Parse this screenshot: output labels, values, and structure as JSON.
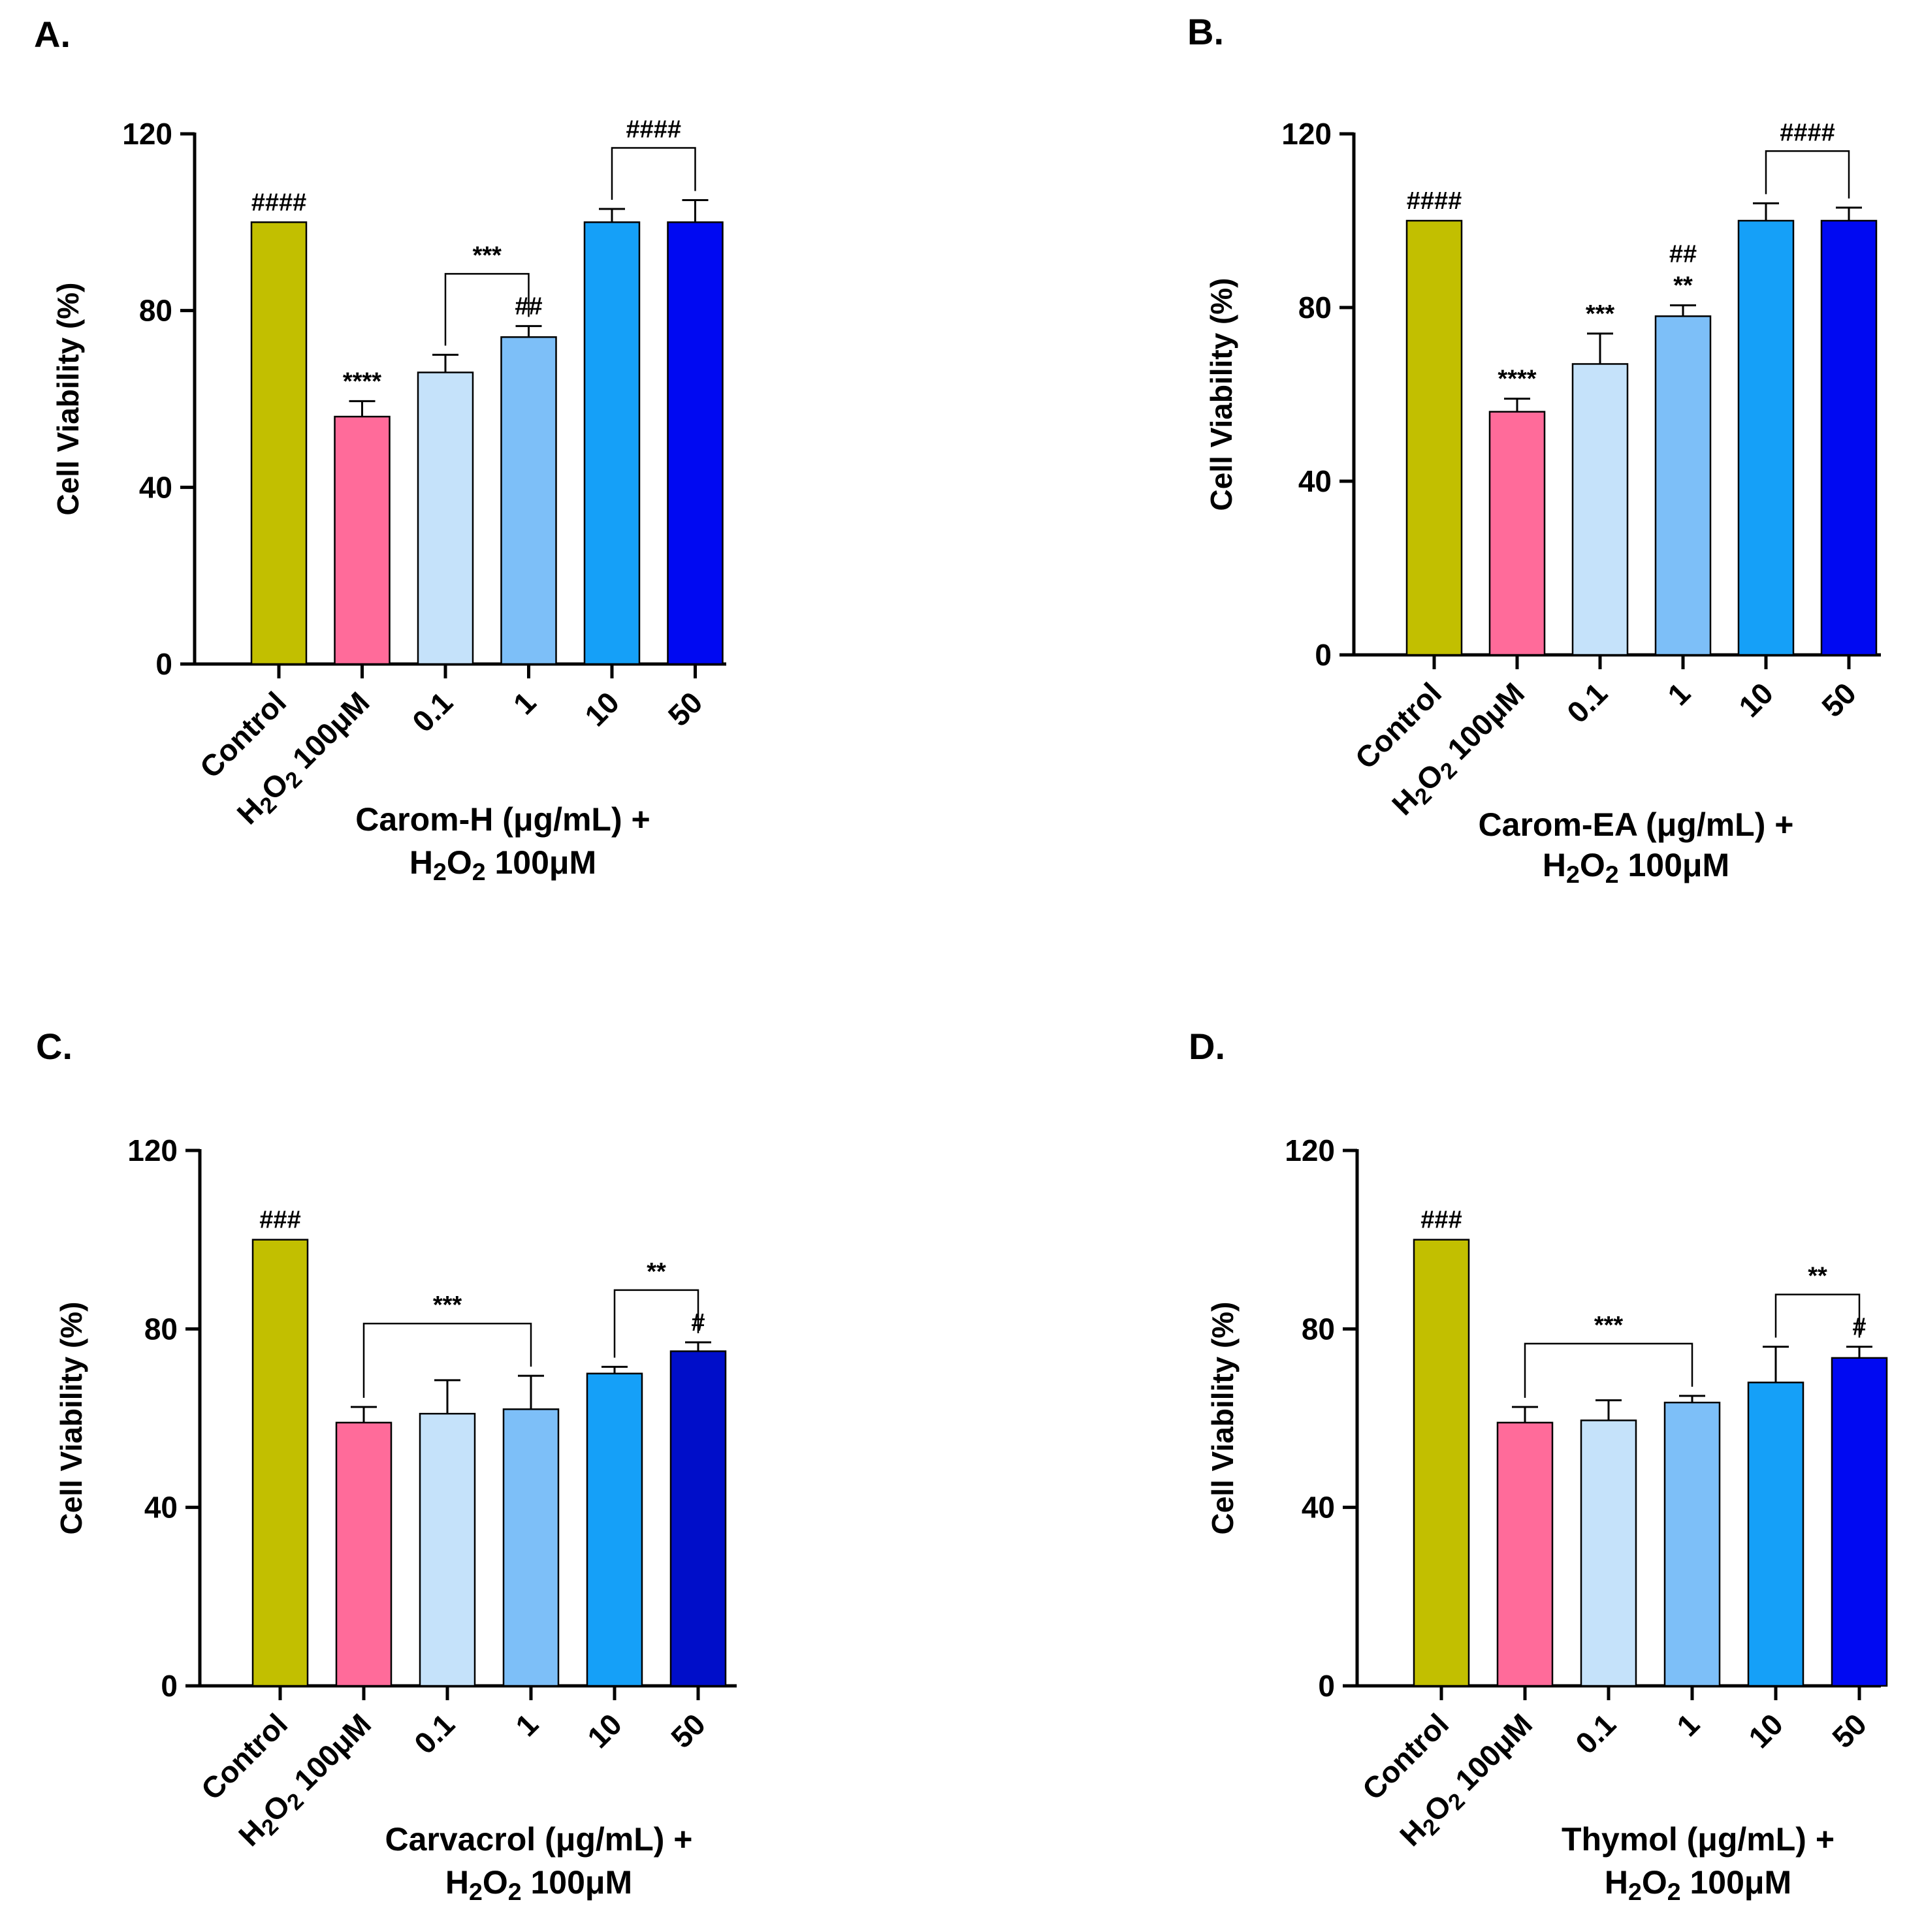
{
  "figure_labels": [
    "A.",
    "B.",
    "C.",
    "D."
  ],
  "chart_data": [
    {
      "type": "bar",
      "panel": "A.",
      "ylabel": "Cell Viability (%)",
      "ylim": [
        0,
        120
      ],
      "yticks": [
        "0",
        "40",
        "80",
        "120"
      ],
      "categories": [
        "Control",
        "H2O2 100μM",
        "0.1",
        "1",
        "10",
        "50"
      ],
      "values": [
        100,
        56,
        66,
        74,
        100,
        100
      ],
      "errors": [
        0,
        3.5,
        4,
        2.5,
        3,
        5
      ],
      "colors": [
        "#c2bf00",
        "#ff6b9a",
        "#c5e2fa",
        "#7dbff8",
        "#15a0f8",
        "#0009f2"
      ],
      "group_label": [
        "Carom-H (μg/mL) +",
        "H2O2 100μM"
      ],
      "annotations": [
        {
          "bar": 0,
          "text": "####"
        },
        {
          "bar": 1,
          "text": "****"
        },
        {
          "bar": 3,
          "text": "##"
        }
      ],
      "brackets": [
        {
          "from": 2,
          "to": 3,
          "text": "***"
        },
        {
          "from": 4,
          "to": 5,
          "text": "####"
        }
      ]
    },
    {
      "type": "bar",
      "panel": "B.",
      "ylabel": "Cell Viability (%)",
      "ylim": [
        0,
        120
      ],
      "yticks": [
        "0",
        "40",
        "80",
        "120"
      ],
      "categories": [
        "Control",
        "H2O2 100μM",
        "0.1",
        "1",
        "10",
        "50"
      ],
      "values": [
        100,
        56,
        67,
        78,
        100,
        100
      ],
      "errors": [
        0,
        3,
        7,
        2.5,
        4,
        3
      ],
      "colors": [
        "#c2bf00",
        "#ff6b9a",
        "#c5e2fa",
        "#7dbff8",
        "#15a0f8",
        "#0009f2"
      ],
      "group_label": [
        "Carom-EA (μg/mL) +",
        "H2O2 100μM"
      ],
      "annotations": [
        {
          "bar": 0,
          "text": "####"
        },
        {
          "bar": 1,
          "text": "****"
        },
        {
          "bar": 2,
          "text": "***"
        },
        {
          "bar": 3,
          "text": "**"
        },
        {
          "bar": 3,
          "text": "##",
          "row": 2
        }
      ],
      "brackets": [
        {
          "from": 4,
          "to": 5,
          "text": "####"
        }
      ]
    },
    {
      "type": "bar",
      "panel": "C.",
      "ylabel": "Cell Viability (%)",
      "ylim": [
        0,
        120
      ],
      "yticks": [
        "0",
        "40",
        "80",
        "120"
      ],
      "categories": [
        "Control",
        "H2O2 100μM",
        "0.1",
        "1",
        "10",
        "50"
      ],
      "values": [
        100,
        59,
        61,
        62,
        70,
        75
      ],
      "errors": [
        0,
        3.5,
        7.5,
        7.5,
        1.5,
        2
      ],
      "colors": [
        "#c2bf00",
        "#ff6b9a",
        "#c5e2fa",
        "#7dbff8",
        "#15a0f8",
        "#000ec9"
      ],
      "group_label": [
        "Carvacrol (μg/mL) +",
        "H2O2 100μM"
      ],
      "annotations": [
        {
          "bar": 0,
          "text": "###"
        },
        {
          "bar": 5,
          "text": "#"
        }
      ],
      "brackets": [
        {
          "from": 1,
          "to": 3,
          "text": "***"
        },
        {
          "from": 4,
          "to": 5,
          "text": "**"
        }
      ]
    },
    {
      "type": "bar",
      "panel": "D.",
      "ylabel": "Cell Viability (%)",
      "ylim": [
        0,
        120
      ],
      "yticks": [
        "0",
        "40",
        "80",
        "120"
      ],
      "categories": [
        "Control",
        "H2O2 100μM",
        "0.1",
        "1",
        "10",
        "50"
      ],
      "values": [
        100,
        59,
        59.5,
        63.5,
        68,
        73.5
      ],
      "errors": [
        0,
        3.5,
        4.5,
        1.5,
        8,
        2.5
      ],
      "colors": [
        "#c2bf00",
        "#ff6b9a",
        "#c5e2fa",
        "#7dbff8",
        "#15a0f8",
        "#0009f2"
      ],
      "group_label": [
        "Thymol (μg/mL) +",
        "H2O2 100μM"
      ],
      "annotations": [
        {
          "bar": 0,
          "text": "###"
        },
        {
          "bar": 5,
          "text": "#"
        }
      ],
      "brackets": [
        {
          "from": 1,
          "to": 3,
          "text": "***"
        },
        {
          "from": 4,
          "to": 5,
          "text": "**"
        }
      ]
    }
  ]
}
